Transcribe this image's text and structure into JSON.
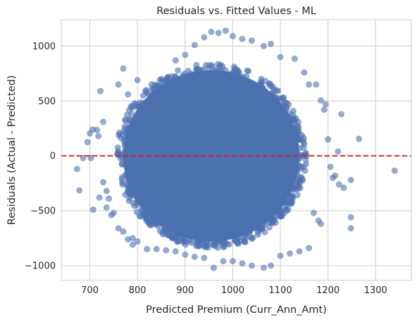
{
  "chart_data": {
    "type": "scatter",
    "title": "Residuals vs. Fitted Values - ML",
    "xlabel": "Predicted Premium (Curr_Ann_Amt)",
    "ylabel": "Residuals (Actual - Predicted)",
    "xlim": [
      640,
      1375
    ],
    "ylim": [
      -1135,
      1240
    ],
    "xticks": [
      700,
      800,
      900,
      1000,
      1100,
      1200,
      1300
    ],
    "yticks": [
      -1000,
      -500,
      0,
      500,
      1000
    ],
    "xtick_labels": [
      "700",
      "800",
      "900",
      "1000",
      "1100",
      "1200",
      "1300"
    ],
    "ytick_labels": [
      "−1000",
      "−500",
      "0",
      "500",
      "1000"
    ],
    "grid": true,
    "reference_line": {
      "y": 0,
      "style": "dashed",
      "color": "#e41a1c"
    },
    "point_color": "#4c72b0",
    "point_alpha": 0.6,
    "cloud": {
      "center_x": 955,
      "center_y": 0,
      "core_half_width": 185,
      "core_half_height": 780
    },
    "points": [
      [
        673,
        -120
      ],
      [
        678,
        -315
      ],
      [
        686,
        -20
      ],
      [
        695,
        125
      ],
      [
        700,
        205
      ],
      [
        702,
        -20
      ],
      [
        706,
        240
      ],
      [
        707,
        -490
      ],
      [
        715,
        235
      ],
      [
        718,
        180
      ],
      [
        722,
        590
      ],
      [
        728,
        310
      ],
      [
        735,
        -320
      ],
      [
        740,
        -390
      ],
      [
        745,
        -540
      ],
      [
        760,
        650
      ],
      [
        770,
        795
      ],
      [
        780,
        560
      ],
      [
        790,
        -750
      ],
      [
        800,
        690
      ],
      [
        850,
        700
      ],
      [
        880,
        870
      ],
      [
        900,
        920
      ],
      [
        920,
        1010
      ],
      [
        940,
        1080
      ],
      [
        955,
        1130
      ],
      [
        970,
        1120
      ],
      [
        985,
        1140
      ],
      [
        1000,
        1090
      ],
      [
        1020,
        1065
      ],
      [
        1040,
        1050
      ],
      [
        1065,
        1000
      ],
      [
        1080,
        1020
      ],
      [
        1100,
        900
      ],
      [
        1130,
        885
      ],
      [
        1150,
        760
      ],
      [
        1160,
        650
      ],
      [
        1175,
        650
      ],
      [
        1185,
        505
      ],
      [
        1195,
        470
      ],
      [
        1192,
        420
      ],
      [
        1200,
        150
      ],
      [
        1205,
        -100
      ],
      [
        1210,
        -200
      ],
      [
        1215,
        -180
      ],
      [
        1221,
        40
      ],
      [
        1223,
        -260
      ],
      [
        1228,
        380
      ],
      [
        1233,
        -290
      ],
      [
        1248,
        -220
      ],
      [
        1248,
        -560
      ],
      [
        1248,
        -660
      ],
      [
        1265,
        155
      ],
      [
        1340,
        -135
      ],
      [
        1185,
        -620
      ],
      [
        1180,
        -590
      ],
      [
        1170,
        -520
      ],
      [
        1160,
        -840
      ],
      [
        1140,
        -870
      ],
      [
        1120,
        -890
      ],
      [
        1100,
        -910
      ],
      [
        1080,
        -1000
      ],
      [
        1065,
        -1020
      ],
      [
        1040,
        -1000
      ],
      [
        1020,
        -980
      ],
      [
        1000,
        -960
      ],
      [
        980,
        -960
      ],
      [
        960,
        -1020
      ],
      [
        940,
        -930
      ],
      [
        920,
        -920
      ],
      [
        900,
        -900
      ],
      [
        880,
        -870
      ],
      [
        860,
        -860
      ],
      [
        840,
        -850
      ],
      [
        820,
        -850
      ],
      [
        800,
        -780
      ],
      [
        790,
        -810
      ],
      [
        780,
        -760
      ],
      [
        770,
        -690
      ],
      [
        760,
        -660
      ],
      [
        750,
        -520
      ],
      [
        735,
        -470
      ],
      [
        728,
        -240
      ],
      [
        720,
        -380
      ]
    ]
  }
}
